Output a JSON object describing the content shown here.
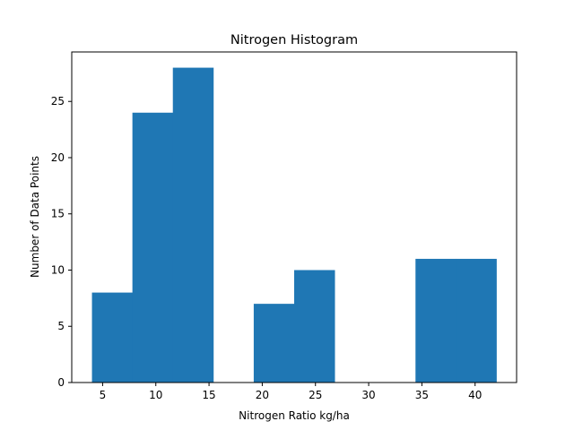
{
  "chart_data": {
    "type": "bar",
    "title": "Nitrogen Histogram",
    "xlabel": "Nitrogen Ratio kg/ha",
    "ylabel": "Number of Data Points",
    "bin_edges": [
      4.0,
      7.8,
      11.6,
      15.4,
      19.2,
      23.0,
      26.8,
      30.6,
      34.4,
      38.2,
      42.0
    ],
    "counts": [
      8,
      24,
      28,
      0,
      7,
      10,
      0,
      0,
      11,
      11
    ],
    "xlim": [
      2.1,
      43.9
    ],
    "ylim": [
      0,
      29.4
    ],
    "xticks": [
      5,
      10,
      15,
      20,
      25,
      30,
      35,
      40
    ],
    "yticks": [
      0,
      5,
      10,
      15,
      20,
      25
    ],
    "grid": false,
    "legend": "none",
    "bar_color": "#1f77b4"
  }
}
